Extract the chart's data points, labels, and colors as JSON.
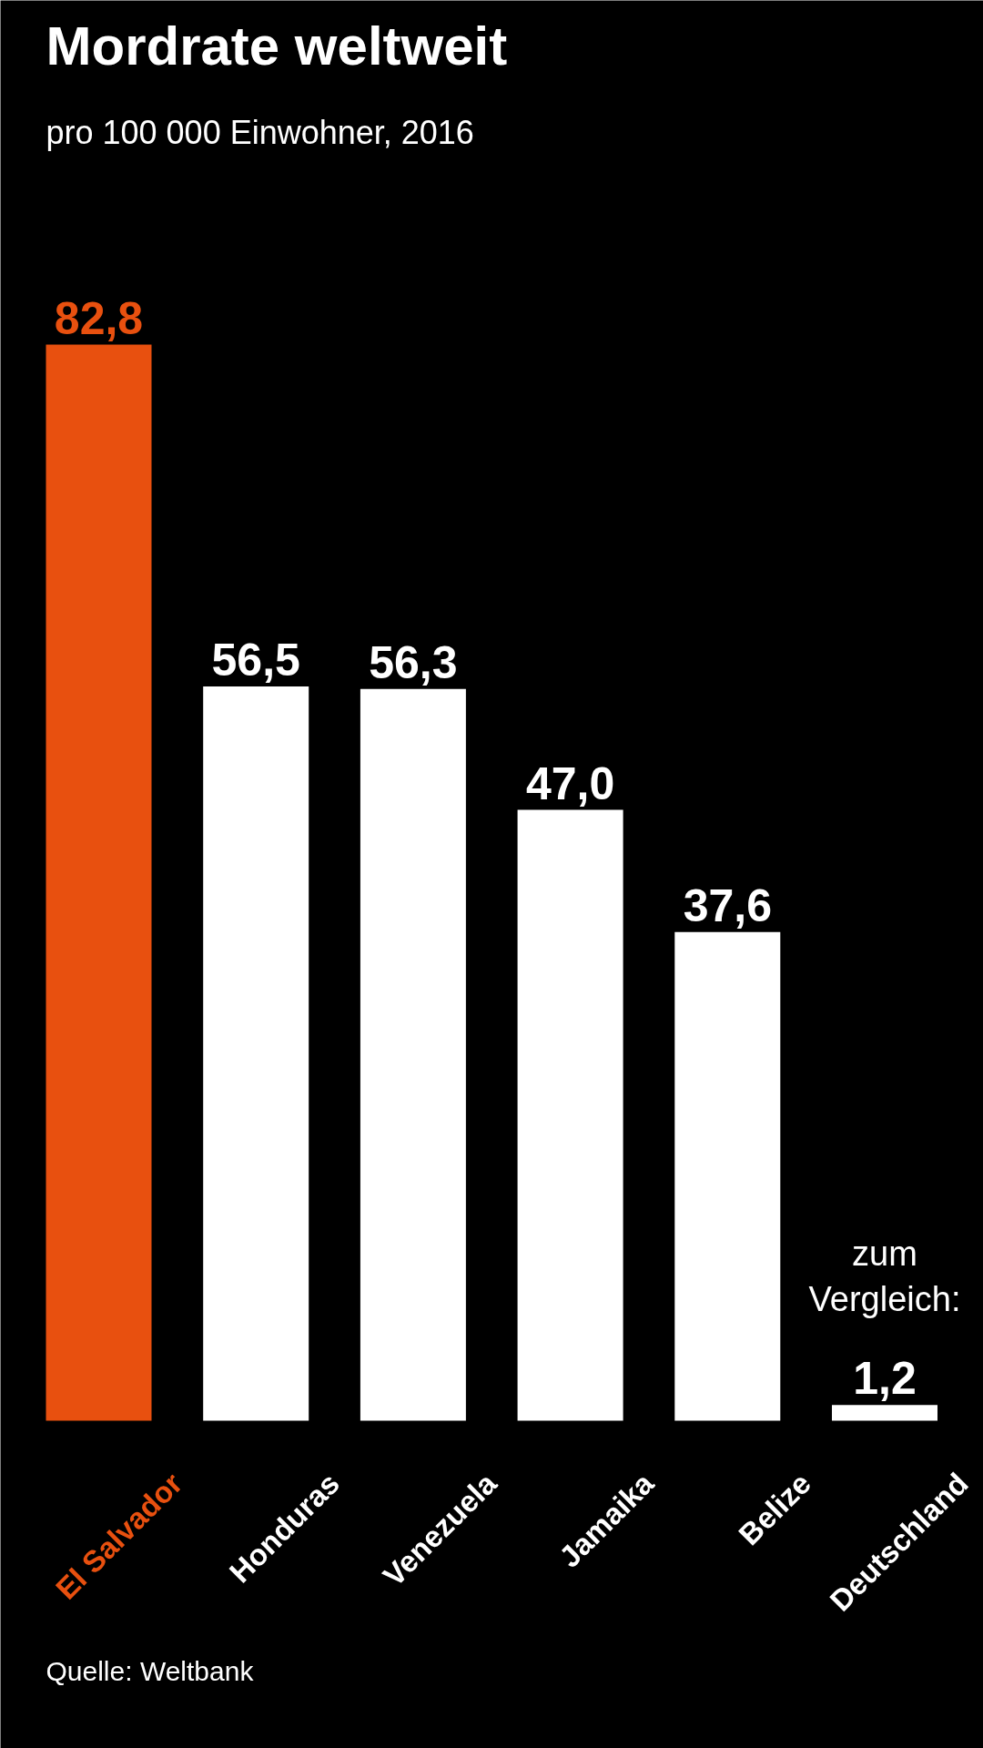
{
  "chart_data": {
    "type": "bar",
    "title": "Mordrate weltweit",
    "subtitle": "pro 100 000 Einwohner, 2016",
    "categories": [
      "El Salvador",
      "Honduras",
      "Venezuela",
      "Jamaika",
      "Belize",
      "Deutschland"
    ],
    "values": [
      82.8,
      56.5,
      56.3,
      47.0,
      37.6,
      1.2
    ],
    "value_labels": [
      "82,8",
      "56,5",
      "56,3",
      "47,0",
      "37,6",
      "1,2"
    ],
    "colors": [
      "#e8500f",
      "#ffffff",
      "#ffffff",
      "#ffffff",
      "#ffffff",
      "#ffffff"
    ],
    "annotations": [
      {
        "text": "zum Vergleich:",
        "x": "Deutschland",
        "y": 1.2
      },
      "Quelle: Weltbank"
    ]
  }
}
